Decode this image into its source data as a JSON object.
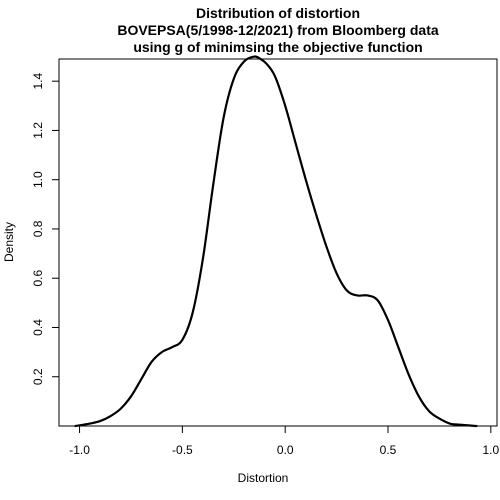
{
  "chart_data": {
    "type": "line",
    "title_lines": [
      "Distribution of distortion",
      "BOVEPSA(5/1998-12/2021) from Bloomberg data",
      "using g of minimsing the objective function"
    ],
    "xlabel": "Distortion",
    "ylabel": "Density",
    "xlim": [
      -1.1,
      1.03
    ],
    "ylim": [
      0,
      1.49
    ],
    "x_ticks": [
      -1.0,
      -0.5,
      0.0,
      0.5,
      1.0
    ],
    "x_tick_labels": [
      "-1.0",
      "-0.5",
      "0.0",
      "0.5",
      "1.0"
    ],
    "y_ticks": [
      0.2,
      0.4,
      0.6,
      0.8,
      1.0,
      1.2,
      1.4
    ],
    "y_tick_labels": [
      "0.2",
      "0.4",
      "0.6",
      "0.8",
      "1.0",
      "1.2",
      "1.4"
    ],
    "grid": false,
    "line_color": "#000000",
    "series": [
      {
        "x": [
          -1.02,
          -0.95,
          -0.9,
          -0.85,
          -0.8,
          -0.75,
          -0.7,
          -0.65,
          -0.6,
          -0.55,
          -0.5,
          -0.45,
          -0.4,
          -0.35,
          -0.3,
          -0.25,
          -0.2,
          -0.15,
          -0.12,
          -0.09,
          -0.05,
          0.0,
          0.05,
          0.1,
          0.15,
          0.2,
          0.25,
          0.3,
          0.35,
          0.4,
          0.45,
          0.5,
          0.55,
          0.6,
          0.65,
          0.7,
          0.75,
          0.8,
          0.85,
          0.93
        ],
        "y": [
          0.0,
          0.01,
          0.02,
          0.04,
          0.07,
          0.12,
          0.19,
          0.26,
          0.3,
          0.32,
          0.35,
          0.46,
          0.68,
          0.98,
          1.25,
          1.41,
          1.48,
          1.5,
          1.49,
          1.47,
          1.42,
          1.3,
          1.15,
          1.0,
          0.86,
          0.73,
          0.62,
          0.55,
          0.53,
          0.53,
          0.51,
          0.43,
          0.32,
          0.21,
          0.12,
          0.06,
          0.03,
          0.01,
          0.005,
          0.0
        ]
      }
    ]
  }
}
